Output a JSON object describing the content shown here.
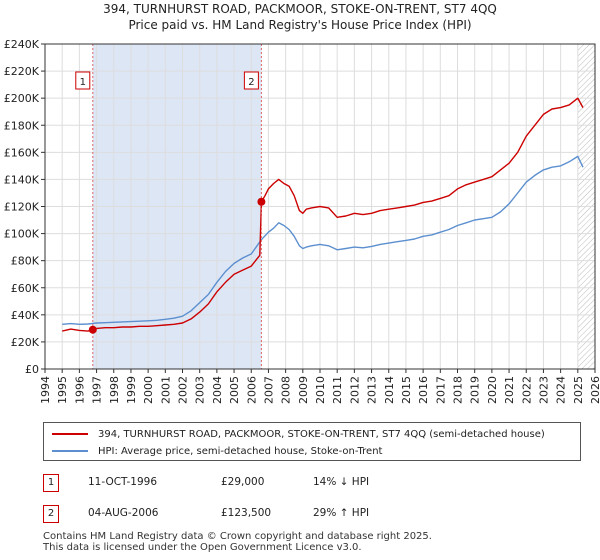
{
  "chart_data": {
    "type": "line",
    "title": "394, TURNHURST ROAD, PACKMOOR, STOKE-ON-TRENT, ST7 4QQ",
    "subtitle": "Price paid vs. HM Land Registry's House Price Index (HPI)",
    "xlim": [
      1994,
      2026
    ],
    "ylim": [
      0,
      240000
    ],
    "y_ticks": [
      0,
      20000,
      40000,
      60000,
      80000,
      100000,
      120000,
      140000,
      160000,
      180000,
      200000,
      220000,
      240000
    ],
    "y_tick_labels": [
      "£0",
      "£20K",
      "£40K",
      "£60K",
      "£80K",
      "£100K",
      "£120K",
      "£140K",
      "£160K",
      "£180K",
      "£200K",
      "£220K",
      "£240K"
    ],
    "x_ticks": [
      1994,
      1995,
      1996,
      1997,
      1998,
      1999,
      2000,
      2001,
      2002,
      2003,
      2004,
      2005,
      2006,
      2007,
      2008,
      2009,
      2010,
      2011,
      2012,
      2013,
      2014,
      2015,
      2016,
      2017,
      2018,
      2019,
      2020,
      2021,
      2022,
      2023,
      2024,
      2025,
      2026
    ],
    "x_tick_labels": [
      "1994",
      "1995",
      "1996",
      "1997",
      "1998",
      "1999",
      "2000",
      "2001",
      "2002",
      "2003",
      "2004",
      "2005",
      "2006",
      "2007",
      "2008",
      "2009",
      "2010",
      "2011",
      "2012",
      "2013",
      "2014",
      "2015",
      "2016",
      "2017",
      "2018",
      "2019",
      "2020",
      "2021",
      "2022",
      "2023",
      "2024",
      "2025",
      "2026"
    ],
    "grid": true,
    "shaded_regions": [
      {
        "from": 1996.78,
        "to": 2006.59,
        "color": "#dde6f5"
      },
      {
        "from": 2025.0,
        "to": 2026.0,
        "hatched": true
      }
    ],
    "series": [
      {
        "name": "394, TURNHURST ROAD, PACKMOOR, STOKE-ON-TRENT, ST7 4QQ (semi-detached house)",
        "color": "#cc0000",
        "x": [
          1995.0,
          1995.5,
          1996.0,
          1996.5,
          1996.78,
          1997.0,
          1997.5,
          1998.0,
          1998.5,
          1999.0,
          1999.5,
          2000.0,
          2000.5,
          2001.0,
          2001.5,
          2002.0,
          2002.5,
          2003.0,
          2003.5,
          2004.0,
          2004.5,
          2005.0,
          2005.5,
          2006.0,
          2006.5,
          2006.59,
          2006.8,
          2007.0,
          2007.3,
          2007.6,
          2007.9,
          2008.2,
          2008.5,
          2008.8,
          2009.0,
          2009.2,
          2009.5,
          2010.0,
          2010.5,
          2011.0,
          2011.5,
          2012.0,
          2012.5,
          2013.0,
          2013.5,
          2014.0,
          2014.5,
          2015.0,
          2015.5,
          2016.0,
          2016.5,
          2017.0,
          2017.5,
          2018.0,
          2018.5,
          2019.0,
          2019.5,
          2020.0,
          2020.5,
          2021.0,
          2021.5,
          2022.0,
          2022.5,
          2023.0,
          2023.5,
          2024.0,
          2024.5,
          2025.0,
          2025.3
        ],
        "values": [
          28000,
          29500,
          28500,
          28000,
          29000,
          30000,
          30500,
          30500,
          31000,
          31000,
          31500,
          31500,
          32000,
          32500,
          33000,
          34000,
          37000,
          42000,
          48000,
          57000,
          64000,
          70000,
          73000,
          76000,
          84000,
          123500,
          128000,
          133000,
          137000,
          140000,
          137000,
          135000,
          128000,
          117000,
          115000,
          118000,
          119000,
          120000,
          119000,
          112000,
          113000,
          115000,
          114000,
          115000,
          117000,
          118000,
          119000,
          120000,
          121000,
          123000,
          124000,
          126000,
          128000,
          133000,
          136000,
          138000,
          140000,
          142000,
          147000,
          152000,
          160000,
          172000,
          180000,
          188000,
          192000,
          193000,
          195000,
          200000,
          193000
        ]
      },
      {
        "name": "HPI: Average price, semi-detached house, Stoke-on-Trent",
        "color": "#5b8fcf",
        "x": [
          1995.0,
          1995.5,
          1996.0,
          1996.5,
          1996.78,
          1997.0,
          1997.5,
          1998.0,
          1998.5,
          1999.0,
          1999.5,
          2000.0,
          2000.5,
          2001.0,
          2001.5,
          2002.0,
          2002.5,
          2003.0,
          2003.5,
          2004.0,
          2004.5,
          2005.0,
          2005.5,
          2006.0,
          2006.59,
          2007.0,
          2007.3,
          2007.6,
          2007.9,
          2008.2,
          2008.5,
          2008.8,
          2009.0,
          2009.2,
          2009.5,
          2010.0,
          2010.5,
          2011.0,
          2011.5,
          2012.0,
          2012.5,
          2013.0,
          2013.5,
          2014.0,
          2014.5,
          2015.0,
          2015.5,
          2016.0,
          2016.5,
          2017.0,
          2017.5,
          2018.0,
          2018.5,
          2019.0,
          2019.5,
          2020.0,
          2020.5,
          2021.0,
          2021.5,
          2022.0,
          2022.5,
          2023.0,
          2023.5,
          2024.0,
          2024.5,
          2025.0,
          2025.3
        ],
        "values": [
          33000,
          33500,
          33000,
          33200,
          33700,
          34000,
          34200,
          34500,
          34800,
          35000,
          35300,
          35600,
          36000,
          36700,
          37500,
          39000,
          43000,
          49000,
          55000,
          64000,
          72000,
          78000,
          82000,
          85000,
          95500,
          101000,
          104000,
          108000,
          106000,
          103000,
          98000,
          91000,
          89000,
          90000,
          91000,
          92000,
          91000,
          88000,
          89000,
          90000,
          89500,
          90500,
          92000,
          93000,
          94000,
          95000,
          96000,
          98000,
          99000,
          101000,
          103000,
          106000,
          108000,
          110000,
          111000,
          112000,
          116000,
          122000,
          130000,
          138000,
          143000,
          147000,
          149000,
          150000,
          153000,
          157000,
          149000
        ]
      }
    ],
    "annotations": [
      {
        "label": "1",
        "x": 1996.78,
        "sale_value": 29000
      },
      {
        "label": "2",
        "x": 2006.59,
        "sale_value": 123500
      }
    ]
  },
  "legend": {
    "entries": [
      {
        "label": "394, TURNHURST ROAD, PACKMOOR, STOKE-ON-TRENT, ST7 4QQ (semi-detached house)",
        "color": "#cc0000"
      },
      {
        "label": "HPI: Average price, semi-detached house, Stoke-on-Trent",
        "color": "#5b8fcf"
      }
    ]
  },
  "transactions": [
    {
      "num": "1",
      "date": "11-OCT-1996",
      "price": "£29,000",
      "hpi": "14% ↓ HPI"
    },
    {
      "num": "2",
      "date": "04-AUG-2006",
      "price": "£123,500",
      "hpi": "29% ↑ HPI"
    }
  ],
  "footer": {
    "line1": "Contains HM Land Registry data © Crown copyright and database right 2025.",
    "line2": "This data is licensed under the Open Government Licence v3.0."
  }
}
